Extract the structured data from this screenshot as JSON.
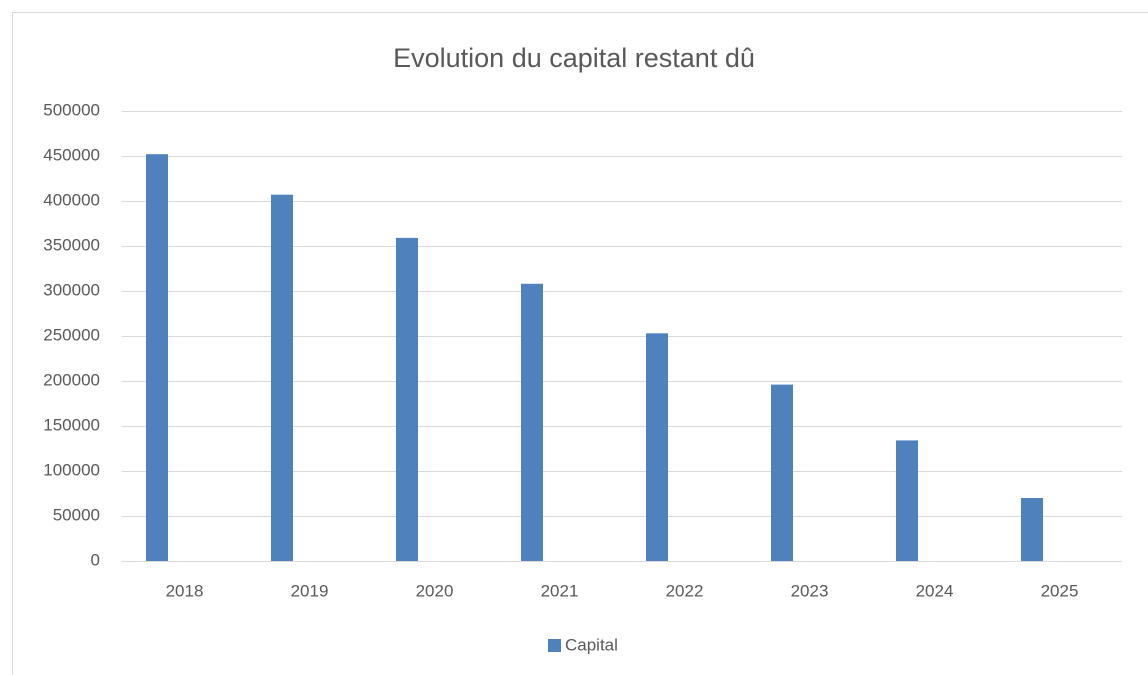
{
  "chart_data": {
    "type": "bar",
    "title": "Evolution du capital restant dû",
    "categories": [
      "2018",
      "2019",
      "2020",
      "2021",
      "2022",
      "2023",
      "2024",
      "2025"
    ],
    "series": [
      {
        "name": "Capital",
        "color": "#4f81bd",
        "values": [
          452000,
          407000,
          359000,
          308000,
          253000,
          196000,
          134000,
          70000
        ]
      }
    ],
    "ylim": [
      0,
      500000
    ],
    "yticks": [
      0,
      50000,
      100000,
      150000,
      200000,
      250000,
      300000,
      350000,
      400000,
      450000,
      500000
    ],
    "grid": true,
    "legend": "bottom"
  }
}
